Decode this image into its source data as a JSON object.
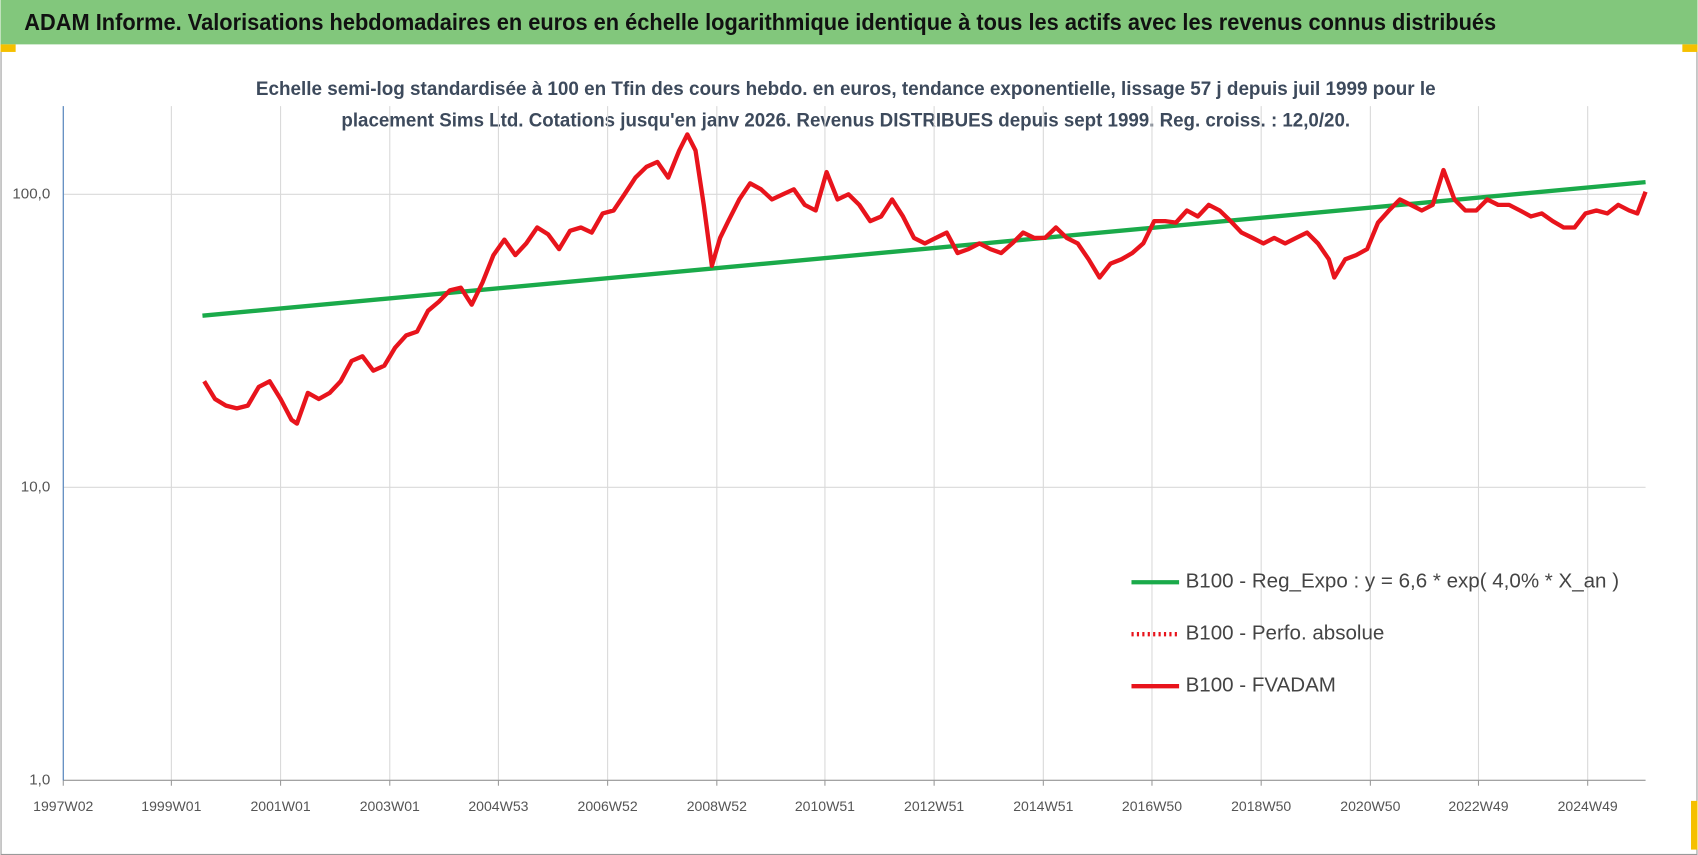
{
  "chart_data": {
    "type": "line",
    "title": "ADAM Informe. Valorisations hebdomadaires en euros en échelle logarithmique identique à tous les actifs avec les revenus connus distribués",
    "subtitle": [
      "Echelle semi-log standardisée à 100 en Tfin des cours hebdo. en euros, tendance exponentielle, lissage 57 j depuis juil 1999 pour le",
      "placement Sims Ltd. Cotations jusqu'en janv 2026. Revenus DISTRIBUES depuis sept 1999. Reg. croiss. : 12,0/20."
    ],
    "log_scale": true,
    "grid": true,
    "legend": "lower right",
    "ylim": [
      1,
      200
    ],
    "yticks": [
      {
        "value": 1,
        "label": "1,0"
      },
      {
        "value": 10,
        "label": "10,0"
      },
      {
        "value": 100,
        "label": "100,0"
      }
    ],
    "xlim": [
      1997.02,
      2026.0
    ],
    "xticks": [
      {
        "value": 1997.02,
        "label": "1997W02"
      },
      {
        "value": 1999.0,
        "label": "1999W01"
      },
      {
        "value": 2001.0,
        "label": "2001W01"
      },
      {
        "value": 2003.0,
        "label": "2003W01"
      },
      {
        "value": 2004.99,
        "label": "2004W53"
      },
      {
        "value": 2006.99,
        "label": "2006W52"
      },
      {
        "value": 2008.99,
        "label": "2008W52"
      },
      {
        "value": 2010.97,
        "label": "2010W51"
      },
      {
        "value": 2012.97,
        "label": "2012W51"
      },
      {
        "value": 2014.97,
        "label": "2014W51"
      },
      {
        "value": 2016.96,
        "label": "2016W50"
      },
      {
        "value": 2018.96,
        "label": "2018W50"
      },
      {
        "value": 2020.96,
        "label": "2020W50"
      },
      {
        "value": 2022.94,
        "label": "2022W49"
      },
      {
        "value": 2024.94,
        "label": "2024W49"
      }
    ],
    "series": [
      {
        "name": "B100 - Reg_Expo : y = 6,6 * exp( 4,0% *  X_an )",
        "color": "#1aaa4a",
        "dash": "solid",
        "x": [
          1999.57,
          2026.0
        ],
        "values": [
          38.5,
          110
        ]
      },
      {
        "name": "B100 - Perfo. absolue",
        "color": "#e8141c",
        "dash": "dotted",
        "x": [],
        "values": []
      },
      {
        "name": "B100 - FVADAM",
        "color": "#e8141c",
        "dash": "solid",
        "x": [
          1999.6,
          1999.8,
          2000.0,
          2000.2,
          2000.4,
          2000.6,
          2000.8,
          2001.0,
          2001.2,
          2001.3,
          2001.5,
          2001.7,
          2001.9,
          2002.1,
          2002.3,
          2002.5,
          2002.7,
          2002.9,
          2003.1,
          2003.3,
          2003.5,
          2003.7,
          2003.9,
          2004.1,
          2004.3,
          2004.5,
          2004.7,
          2004.9,
          2005.1,
          2005.3,
          2005.5,
          2005.7,
          2005.9,
          2006.1,
          2006.3,
          2006.5,
          2006.7,
          2006.9,
          2007.1,
          2007.3,
          2007.5,
          2007.7,
          2007.9,
          2008.1,
          2008.3,
          2008.45,
          2008.6,
          2008.75,
          2008.9,
          2009.05,
          2009.2,
          2009.4,
          2009.6,
          2009.8,
          2010.0,
          2010.2,
          2010.4,
          2010.6,
          2010.8,
          2011.0,
          2011.2,
          2011.4,
          2011.6,
          2011.8,
          2012.0,
          2012.2,
          2012.4,
          2012.6,
          2012.8,
          2013.0,
          2013.2,
          2013.4,
          2013.6,
          2013.8,
          2014.0,
          2014.2,
          2014.4,
          2014.6,
          2014.8,
          2015.0,
          2015.2,
          2015.4,
          2015.6,
          2015.8,
          2016.0,
          2016.2,
          2016.4,
          2016.6,
          2016.8,
          2017.0,
          2017.2,
          2017.4,
          2017.6,
          2017.8,
          2018.0,
          2018.2,
          2018.4,
          2018.6,
          2018.8,
          2019.0,
          2019.2,
          2019.4,
          2019.6,
          2019.8,
          2020.0,
          2020.2,
          2020.3,
          2020.5,
          2020.7,
          2020.9,
          2021.1,
          2021.3,
          2021.5,
          2021.7,
          2021.9,
          2022.1,
          2022.3,
          2022.5,
          2022.7,
          2022.9,
          2023.1,
          2023.3,
          2023.5,
          2023.7,
          2023.9,
          2024.1,
          2024.3,
          2024.5,
          2024.7,
          2024.9,
          2025.1,
          2025.3,
          2025.5,
          2025.7,
          2025.85,
          2026.0
        ],
        "values": [
          23,
          20,
          19,
          18.6,
          19,
          22,
          23,
          20,
          17,
          16.5,
          21,
          20,
          21,
          23,
          27,
          28,
          25,
          26,
          30,
          33,
          34,
          40,
          43,
          47,
          48,
          42,
          50,
          62,
          70,
          62,
          68,
          77,
          73,
          65,
          75,
          77,
          74,
          86,
          88,
          100,
          114,
          124,
          129,
          114,
          141,
          160,
          141,
          92,
          57,
          71,
          81,
          96,
          109,
          104,
          96,
          100,
          104,
          92,
          88,
          119,
          96,
          100,
          92,
          81,
          84,
          96,
          84,
          71,
          68,
          71,
          74,
          63,
          65,
          68,
          65,
          63,
          68,
          74,
          71,
          71,
          77,
          71,
          68,
          60,
          52,
          58,
          60,
          63,
          68,
          81,
          81,
          80,
          88,
          84,
          92,
          88,
          81,
          74,
          71,
          68,
          71,
          68,
          71,
          74,
          68,
          60,
          52,
          60,
          62,
          65,
          80,
          88,
          96,
          92,
          88,
          92,
          121,
          96,
          88,
          88,
          96,
          92,
          92,
          88,
          84,
          86,
          81,
          77,
          77,
          86,
          88,
          86,
          92,
          88,
          86,
          102
        ]
      }
    ]
  }
}
